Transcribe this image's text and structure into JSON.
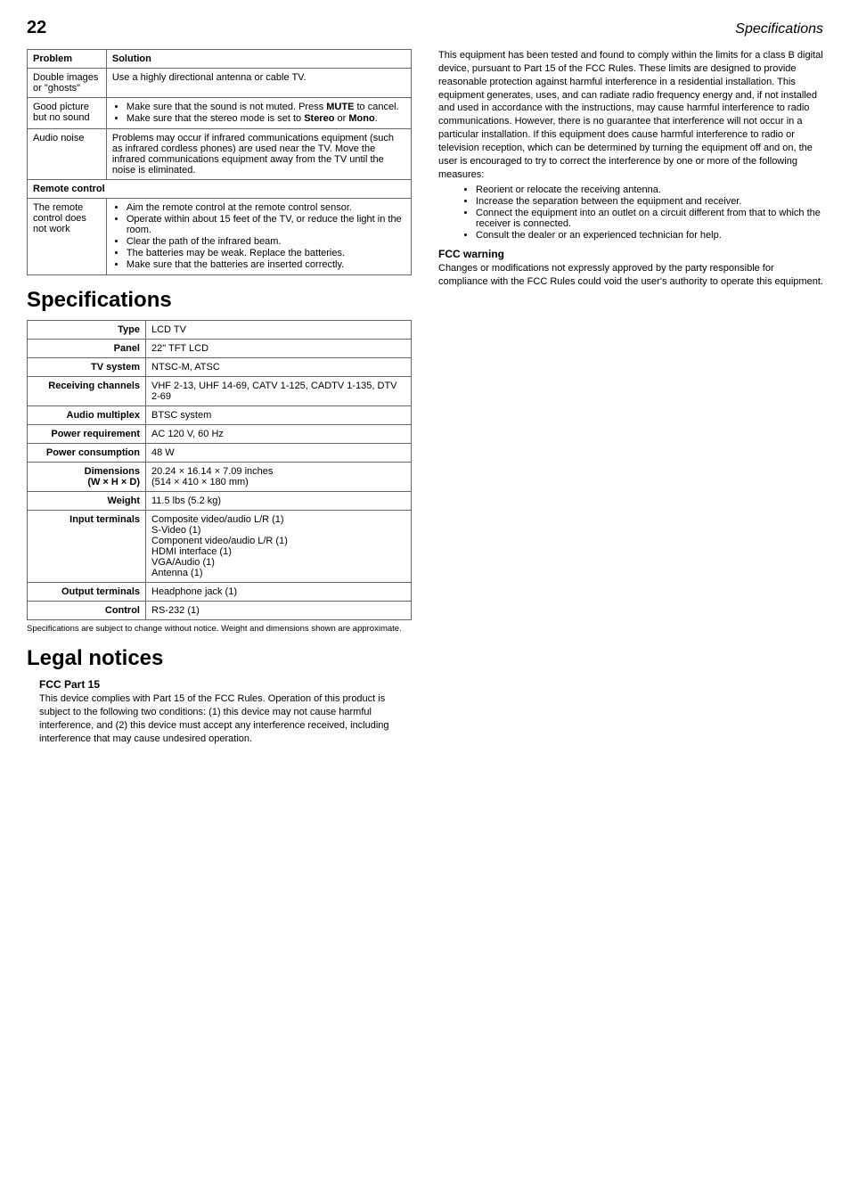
{
  "header": {
    "page_number": "22",
    "section_label": "Specifications"
  },
  "troubleshoot": {
    "headers": {
      "problem": "Problem",
      "solution": "Solution"
    },
    "rows": [
      {
        "problem": "Double images or \"ghosts\"",
        "solution_text": "Use a highly directional antenna or cable TV."
      },
      {
        "problem": "Good picture but no sound"
      },
      {
        "problem": "Audio noise",
        "solution_text": "Problems may occur if infrared communications equipment (such as infrared cordless phones) are used near the TV. Move the infrared communications equipment away from the TV until the noise is eliminated."
      }
    ],
    "sound_bullets": {
      "b1_pre": "Make sure that the sound is not muted. Press ",
      "b1_bold": "MUTE",
      "b1_post": " to cancel.",
      "b2_pre": "Make sure that the stereo mode is set to ",
      "b2_bold1": "Stereo",
      "b2_mid": " or ",
      "b2_bold2": "Mono",
      "b2_post": "."
    },
    "remote_header": "Remote control",
    "remote_problem": "The remote control does not work",
    "remote_bullets": {
      "b1": "Aim the remote control at the remote control sensor.",
      "b2": "Operate within about 15 feet of the TV, or reduce the light in the room.",
      "b3": "Clear the path of the infrared beam.",
      "b4": "The batteries may be weak. Replace the batteries.",
      "b5": "Make sure that the batteries are inserted correctly."
    }
  },
  "specifications": {
    "title": "Specifications",
    "rows": {
      "type": {
        "label": "Type",
        "value": "LCD TV"
      },
      "panel": {
        "label": "Panel",
        "value": "22\" TFT LCD"
      },
      "tvsystem": {
        "label": "TV system",
        "value": "NTSC-M, ATSC"
      },
      "channels": {
        "label": "Receiving channels",
        "value": "VHF 2-13, UHF 14-69, CATV 1-125, CADTV 1-135, DTV 2-69"
      },
      "audio": {
        "label": "Audio multiplex",
        "value": "BTSC system"
      },
      "power_req": {
        "label": "Power requirement",
        "value": "AC 120 V, 60 Hz"
      },
      "power_cons": {
        "label": "Power consumption",
        "value": "48 W"
      },
      "dimensions": {
        "label": "Dimensions\n(W × H × D)",
        "value": "20.24 × 16.14 × 7.09 inches\n(514 × 410 × 180 mm)"
      },
      "weight": {
        "label": "Weight",
        "value": "11.5 lbs (5.2 kg)"
      },
      "input": {
        "label": "Input terminals",
        "value": "Composite video/audio L/R (1)\nS-Video (1)\nComponent video/audio L/R (1)\nHDMI interface (1)\nVGA/Audio (1)\nAntenna (1)"
      },
      "output": {
        "label": "Output terminals",
        "value": "Headphone jack (1)"
      },
      "control": {
        "label": "Control",
        "value": "RS-232 (1)"
      }
    },
    "footnote": "Specifications are subject to change without notice. Weight and dimensions shown are approximate."
  },
  "legal": {
    "title": "Legal notices",
    "fcc15": {
      "heading": "FCC Part 15",
      "body": "This device complies with Part 15 of the FCC Rules. Operation of this product is subject to the following two conditions: (1) this device may not cause harmful interference, and (2) this device must accept any interference received, including interference that may cause undesired operation."
    },
    "fcc_body2": "This equipment has been tested and found to comply within the limits for a class B digital device, pursuant to Part 15 of the FCC Rules. These limits are designed to provide reasonable protection against harmful interference in a residential installation. This equipment generates, uses, and can radiate radio frequency energy and, if not installed and used in accordance with the instructions, may cause harmful interference to radio communications. However, there is no guarantee that interference will not occur in a particular installation. If this equipment does cause harmful interference to radio or television reception, which can be determined by turning the equipment off and on, the user is encouraged to try to correct the interference by one or more of the following measures:",
    "fcc_bullets": {
      "b1": "Reorient or relocate the receiving antenna.",
      "b2": "Increase the separation between the equipment and receiver.",
      "b3": "Connect the equipment into an outlet on a circuit different from that to which the receiver is connected.",
      "b4": "Consult the dealer or an experienced technician for help."
    },
    "fcc_warning": {
      "heading": "FCC warning",
      "body": "Changes or modifications not expressly approved by the party responsible for compliance with the FCC Rules could void the user's authority to operate this equipment."
    }
  }
}
